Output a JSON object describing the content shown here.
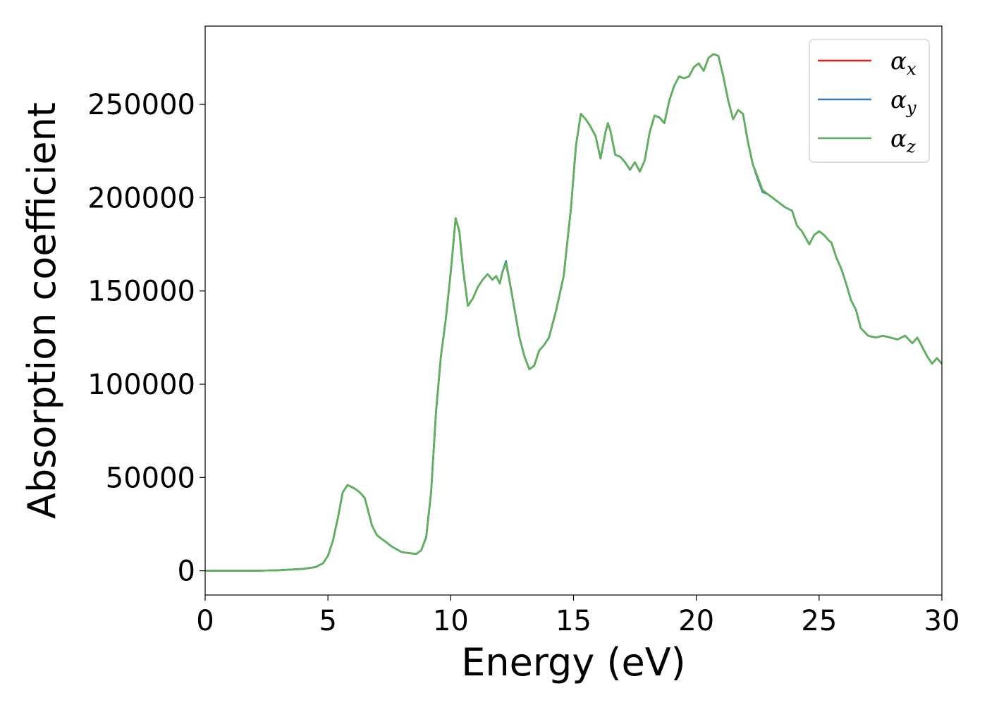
{
  "chart_data": {
    "type": "line",
    "xlabel": "Energy (eV)",
    "ylabel": "Absorption coefficient",
    "xlim": [
      0,
      30
    ],
    "ylim": [
      -13000,
      292000
    ],
    "x_ticks": [
      0,
      5,
      10,
      15,
      20,
      25,
      30
    ],
    "y_ticks": [
      0,
      50000,
      100000,
      150000,
      200000,
      250000
    ],
    "grid": false,
    "legend_position": "top-right",
    "series": [
      {
        "name": "α",
        "subscript": "x",
        "color": "#e41a1c",
        "x": [
          0,
          2,
          3,
          4,
          4.5,
          4.8,
          5.0,
          5.2,
          5.4,
          5.6,
          5.8,
          5.95,
          6.1,
          6.3,
          6.5,
          6.6,
          6.8,
          7.0,
          7.3,
          7.6,
          8.0,
          8.3,
          8.6,
          8.8,
          9.0,
          9.2,
          9.4,
          9.6,
          9.8,
          10.0,
          10.2,
          10.35,
          10.5,
          10.7,
          10.9,
          11.1,
          11.3,
          11.5,
          11.7,
          11.85,
          12.0,
          12.1,
          12.25,
          12.4,
          12.6,
          12.8,
          13.0,
          13.2,
          13.4,
          13.6,
          13.8,
          14.0,
          14.3,
          14.6,
          14.9,
          15.1,
          15.3,
          15.5,
          15.7,
          15.9,
          16.1,
          16.3,
          16.4,
          16.5,
          16.7,
          16.9,
          17.1,
          17.3,
          17.5,
          17.7,
          17.9,
          18.1,
          18.3,
          18.5,
          18.7,
          18.9,
          19.1,
          19.3,
          19.5,
          19.7,
          19.9,
          20.1,
          20.3,
          20.5,
          20.7,
          20.9,
          21.1,
          21.3,
          21.5,
          21.7,
          21.9,
          22.1,
          22.3,
          22.5,
          22.7,
          22.9,
          23.1,
          23.3,
          23.6,
          23.9,
          24.1,
          24.3,
          24.6,
          24.8,
          25.0,
          25.2,
          25.4,
          25.5,
          25.7,
          25.9,
          26.1,
          26.3,
          26.5,
          26.7,
          27.0,
          27.3,
          27.6,
          27.9,
          28.2,
          28.5,
          28.8,
          29.0,
          29.2,
          29.4,
          29.6,
          29.8,
          30.0
        ],
        "values": [
          0,
          0,
          300,
          1000,
          2000,
          4000,
          8000,
          16000,
          28000,
          42000,
          46000,
          45000,
          44000,
          42000,
          39000,
          34000,
          24000,
          19000,
          16000,
          13000,
          10000,
          9500,
          9000,
          11000,
          18000,
          42000,
          85000,
          115000,
          135000,
          160000,
          189000,
          182000,
          162000,
          142000,
          146000,
          152000,
          156000,
          159000,
          156000,
          158000,
          154000,
          160000,
          165000,
          155000,
          140000,
          125000,
          115000,
          108000,
          110000,
          118000,
          121000,
          125000,
          140000,
          158000,
          195000,
          228000,
          245000,
          242000,
          238000,
          233000,
          221000,
          235000,
          240000,
          236000,
          223000,
          222000,
          219000,
          215000,
          219000,
          214000,
          220000,
          235000,
          244000,
          243000,
          240000,
          252000,
          260000,
          265000,
          264000,
          265000,
          270000,
          272000,
          268000,
          275000,
          277000,
          276000,
          265000,
          252000,
          242000,
          247000,
          245000,
          230000,
          218000,
          211000,
          204000,
          202000,
          200000,
          198000,
          195000,
          193000,
          185000,
          182000,
          175000,
          180000,
          182000,
          180000,
          177000,
          176000,
          168000,
          162000,
          154000,
          145000,
          140000,
          130000,
          126000,
          125000,
          126000,
          125000,
          124000,
          126000,
          122000,
          125000,
          120000,
          115000,
          111000,
          114000,
          111000
        ]
      },
      {
        "name": "α",
        "subscript": "y",
        "color": "#377eb8",
        "x": [
          0,
          2,
          3,
          4,
          4.5,
          4.8,
          5.0,
          5.2,
          5.4,
          5.6,
          5.8,
          5.95,
          6.1,
          6.3,
          6.5,
          6.6,
          6.8,
          7.0,
          7.3,
          7.6,
          8.0,
          8.3,
          8.6,
          8.8,
          9.0,
          9.2,
          9.4,
          9.6,
          9.8,
          10.0,
          10.2,
          10.35,
          10.5,
          10.7,
          10.9,
          11.1,
          11.3,
          11.5,
          11.7,
          11.85,
          12.0,
          12.1,
          12.25,
          12.4,
          12.6,
          12.8,
          13.0,
          13.2,
          13.4,
          13.6,
          13.8,
          14.0,
          14.3,
          14.6,
          14.9,
          15.1,
          15.3,
          15.5,
          15.7,
          15.9,
          16.1,
          16.3,
          16.4,
          16.5,
          16.7,
          16.9,
          17.1,
          17.3,
          17.5,
          17.7,
          17.9,
          18.1,
          18.3,
          18.5,
          18.7,
          18.9,
          19.1,
          19.3,
          19.5,
          19.7,
          19.9,
          20.1,
          20.3,
          20.5,
          20.7,
          20.9,
          21.1,
          21.3,
          21.5,
          21.7,
          21.9,
          22.1,
          22.3,
          22.5,
          22.7,
          22.9,
          23.1,
          23.3,
          23.6,
          23.9,
          24.1,
          24.3,
          24.6,
          24.8,
          25.0,
          25.2,
          25.4,
          25.5,
          25.7,
          25.9,
          26.1,
          26.3,
          26.5,
          26.7,
          27.0,
          27.3,
          27.6,
          27.9,
          28.2,
          28.5,
          28.8,
          29.0,
          29.2,
          29.4,
          29.6,
          29.8,
          30.0
        ],
        "values": [
          0,
          0,
          300,
          1000,
          2000,
          4000,
          8000,
          16000,
          28000,
          42000,
          46000,
          45000,
          44000,
          42000,
          39000,
          34000,
          24000,
          19000,
          16000,
          13000,
          10000,
          9500,
          9000,
          11000,
          18000,
          42000,
          85000,
          115000,
          135000,
          160000,
          189000,
          182000,
          162000,
          142000,
          146000,
          152000,
          156000,
          159000,
          156000,
          158000,
          154000,
          160000,
          166000,
          155000,
          140000,
          125000,
          115000,
          108000,
          110000,
          118000,
          121000,
          125000,
          140000,
          158000,
          195000,
          228000,
          245000,
          242000,
          238000,
          233000,
          221000,
          235000,
          240000,
          236000,
          223000,
          222000,
          219000,
          215000,
          219000,
          214000,
          220000,
          235000,
          244000,
          243000,
          240000,
          252000,
          260000,
          265000,
          264000,
          265000,
          270000,
          272000,
          268000,
          275000,
          277000,
          276000,
          265000,
          252000,
          242000,
          247000,
          245000,
          230000,
          218000,
          210000,
          203000,
          202000,
          200000,
          198000,
          195000,
          193000,
          185000,
          182000,
          175000,
          180000,
          182000,
          180000,
          177000,
          176000,
          168000,
          162000,
          154000,
          145000,
          140000,
          130000,
          126000,
          125000,
          126000,
          125000,
          124000,
          126000,
          122000,
          125000,
          120000,
          115000,
          111000,
          114000,
          111000
        ]
      },
      {
        "name": "α",
        "subscript": "z",
        "color": "#5db35a",
        "x": [
          0,
          2,
          3,
          4,
          4.5,
          4.8,
          5.0,
          5.2,
          5.4,
          5.6,
          5.8,
          5.95,
          6.1,
          6.3,
          6.5,
          6.6,
          6.8,
          7.0,
          7.3,
          7.6,
          8.0,
          8.3,
          8.6,
          8.8,
          9.0,
          9.2,
          9.4,
          9.6,
          9.8,
          10.0,
          10.2,
          10.35,
          10.5,
          10.7,
          10.9,
          11.1,
          11.3,
          11.5,
          11.7,
          11.85,
          12.0,
          12.1,
          12.25,
          12.4,
          12.6,
          12.8,
          13.0,
          13.2,
          13.4,
          13.6,
          13.8,
          14.0,
          14.3,
          14.6,
          14.9,
          15.1,
          15.3,
          15.5,
          15.7,
          15.9,
          16.1,
          16.3,
          16.4,
          16.5,
          16.7,
          16.9,
          17.1,
          17.3,
          17.5,
          17.7,
          17.9,
          18.1,
          18.3,
          18.5,
          18.7,
          18.9,
          19.1,
          19.3,
          19.5,
          19.7,
          19.9,
          20.1,
          20.3,
          20.5,
          20.7,
          20.9,
          21.1,
          21.3,
          21.5,
          21.7,
          21.9,
          22.1,
          22.3,
          22.5,
          22.7,
          22.9,
          23.1,
          23.3,
          23.6,
          23.9,
          24.1,
          24.3,
          24.6,
          24.8,
          25.0,
          25.2,
          25.4,
          25.5,
          25.7,
          25.9,
          26.1,
          26.3,
          26.5,
          26.7,
          27.0,
          27.3,
          27.6,
          27.9,
          28.2,
          28.5,
          28.8,
          29.0,
          29.2,
          29.4,
          29.6,
          29.8,
          30.0
        ],
        "values": [
          0,
          0,
          300,
          1000,
          2000,
          4000,
          8000,
          16000,
          28000,
          42000,
          46000,
          45000,
          44000,
          42000,
          39000,
          34000,
          24000,
          19000,
          16000,
          13000,
          10000,
          9500,
          9000,
          11000,
          18000,
          42000,
          85000,
          115000,
          135000,
          160000,
          189000,
          182000,
          162000,
          142000,
          146000,
          152000,
          156000,
          159000,
          156000,
          158000,
          154000,
          160000,
          165000,
          155000,
          140000,
          125000,
          115000,
          108000,
          110000,
          118000,
          121000,
          125000,
          140000,
          158000,
          195000,
          228000,
          245000,
          242000,
          238000,
          233000,
          221000,
          235000,
          240000,
          236000,
          223000,
          222000,
          219000,
          215000,
          219000,
          214000,
          220000,
          235000,
          244000,
          243000,
          240000,
          252000,
          260000,
          265000,
          264000,
          265000,
          270000,
          272000,
          268000,
          275000,
          277000,
          276000,
          265000,
          252000,
          242000,
          247000,
          245000,
          230000,
          218000,
          211000,
          204000,
          202000,
          200000,
          198000,
          195000,
          193000,
          185000,
          182000,
          175000,
          180000,
          182000,
          180000,
          177000,
          176000,
          168000,
          162000,
          154000,
          145000,
          140000,
          130000,
          126000,
          125000,
          126000,
          125000,
          124000,
          126000,
          122000,
          125000,
          120000,
          115000,
          111000,
          114000,
          111000
        ]
      }
    ]
  }
}
